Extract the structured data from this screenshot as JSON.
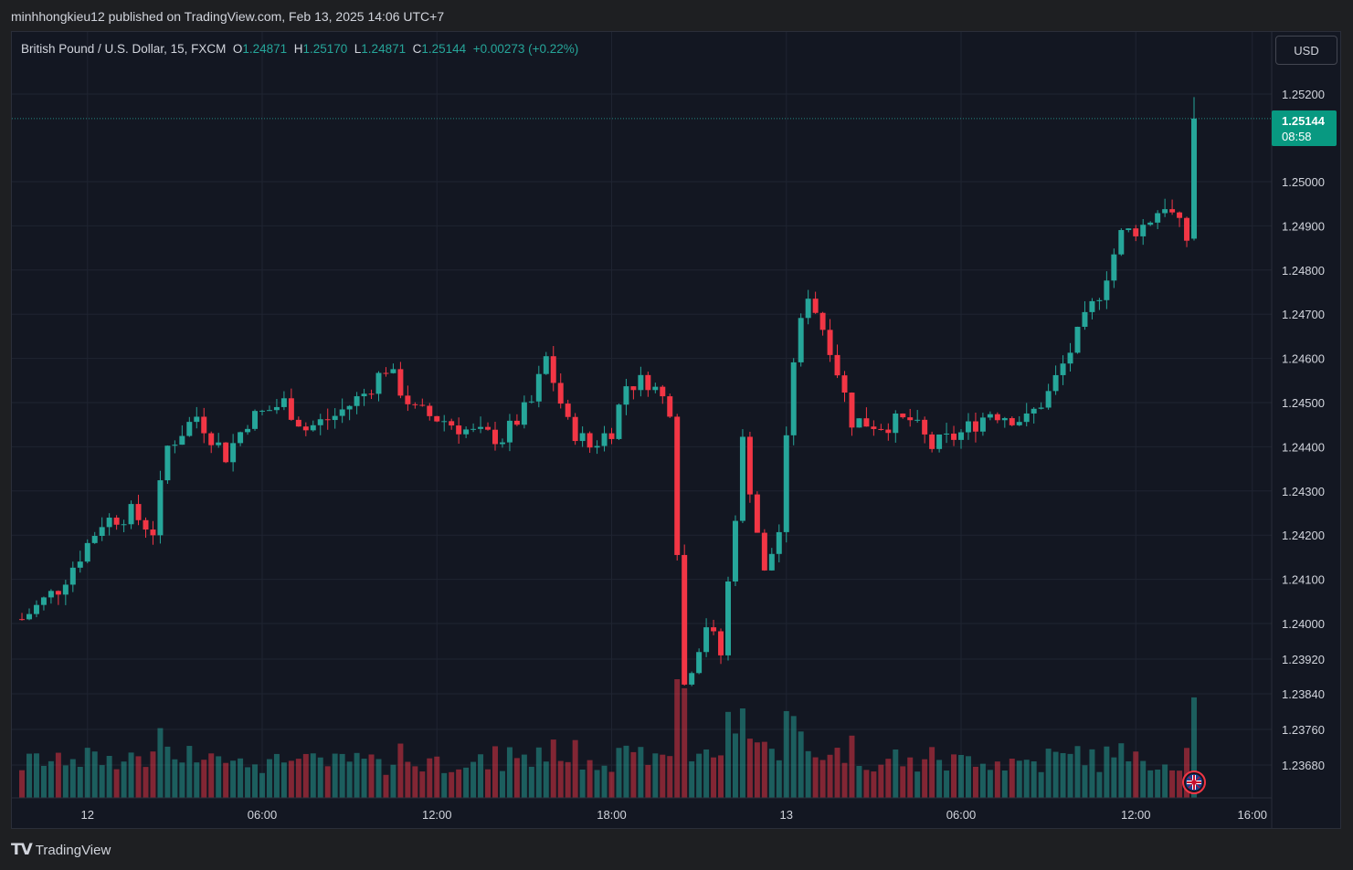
{
  "header": {
    "published": "minhhongkieu12 published on TradingView.com, Feb 13, 2025 14:06 UTC+7"
  },
  "legend": {
    "symbol": "British Pound / U.S. Dollar, 15, FXCM",
    "o_label": "O",
    "o_value": "1.24871",
    "h_label": "H",
    "h_value": "1.25170",
    "l_label": "L",
    "l_value": "1.24871",
    "c_label": "C",
    "c_value": "1.25144",
    "change": "+0.00273 (+0.22%)"
  },
  "currency_button": "USD",
  "last_price": {
    "price": "1.25144",
    "countdown": "08:58"
  },
  "footer": {
    "brand": "TradingView"
  },
  "colors": {
    "up": "#26a69a",
    "down": "#f23645",
    "background": "#131722",
    "grid": "#1f2431"
  },
  "icons": {
    "footer_logo": "tradingview-logo-icon",
    "event_flag": "uk-flag-icon"
  },
  "chart_data": {
    "type": "candlestick",
    "interval_minutes": 15,
    "y_ticks": [
      "1.25200",
      "1.25000",
      "1.24900",
      "1.24800",
      "1.24700",
      "1.24600",
      "1.24500",
      "1.24400",
      "1.24300",
      "1.24200",
      "1.24100",
      "1.24000",
      "1.23920",
      "1.23840",
      "1.23760",
      "1.23680"
    ],
    "x_ticks": [
      {
        "label": "12",
        "time": "2025-02-12 00:00"
      },
      {
        "label": "06:00",
        "time": "2025-02-12 06:00"
      },
      {
        "label": "12:00",
        "time": "2025-02-12 12:00"
      },
      {
        "label": "18:00",
        "time": "2025-02-12 18:00"
      },
      {
        "label": "13",
        "time": "2025-02-13 00:00"
      },
      {
        "label": "06:00",
        "time": "2025-02-13 06:00"
      },
      {
        "label": "12:00",
        "time": "2025-02-13 12:00"
      },
      {
        "label": "16:00",
        "time": "2025-02-13 16:00"
      }
    ],
    "x_range": [
      "2025-02-11 21:45",
      "2025-02-13 16:30"
    ],
    "last_price_value": 1.25144,
    "close_path": [
      [
        "2025-02-11 21:45",
        1.2401
      ],
      [
        "2025-02-11 23:00",
        1.2408
      ],
      [
        "2025-02-12 00:30",
        1.2423
      ],
      [
        "2025-02-12 01:30",
        1.2425
      ],
      [
        "2025-02-12 02:15",
        1.2421
      ],
      [
        "2025-02-12 02:45",
        1.244
      ],
      [
        "2025-02-12 03:45",
        1.2447
      ],
      [
        "2025-02-12 04:45",
        1.2438
      ],
      [
        "2025-02-12 05:30",
        1.2446
      ],
      [
        "2025-02-12 06:45",
        1.245
      ],
      [
        "2025-02-12 07:30",
        1.2444
      ],
      [
        "2025-02-12 08:30",
        1.2447
      ],
      [
        "2025-02-12 09:30",
        1.2452
      ],
      [
        "2025-02-12 10:15",
        1.2458
      ],
      [
        "2025-02-12 11:15",
        1.2448
      ],
      [
        "2025-02-12 12:15",
        1.2446
      ],
      [
        "2025-02-12 13:15",
        1.2443
      ],
      [
        "2025-02-12 14:15",
        1.2442
      ],
      [
        "2025-02-12 15:15",
        1.245
      ],
      [
        "2025-02-12 15:45",
        1.246
      ],
      [
        "2025-02-12 16:30",
        1.2445
      ],
      [
        "2025-02-12 17:15",
        1.244
      ],
      [
        "2025-02-12 18:00",
        1.2444
      ],
      [
        "2025-02-12 18:30",
        1.2454
      ],
      [
        "2025-02-12 19:15",
        1.2455
      ],
      [
        "2025-02-12 20:00",
        1.2449
      ],
      [
        "2025-02-12 20:30",
        1.2386
      ],
      [
        "2025-02-12 21:15",
        1.24
      ],
      [
        "2025-02-12 21:45",
        1.2393
      ],
      [
        "2025-02-12 22:30",
        1.2441
      ],
      [
        "2025-02-12 23:15",
        1.2411
      ],
      [
        "2025-02-12 23:45",
        1.2421
      ],
      [
        "2025-02-13 00:15",
        1.246
      ],
      [
        "2025-02-13 00:45",
        1.2475
      ],
      [
        "2025-02-13 01:30",
        1.2463
      ],
      [
        "2025-02-13 02:15",
        1.2446
      ],
      [
        "2025-02-13 03:15",
        1.2445
      ],
      [
        "2025-02-13 04:15",
        1.2446
      ],
      [
        "2025-02-13 05:00",
        1.244
      ],
      [
        "2025-02-13 06:00",
        1.2443
      ],
      [
        "2025-02-13 07:00",
        1.2448
      ],
      [
        "2025-02-13 08:15",
        1.2446
      ],
      [
        "2025-02-13 09:00",
        1.2452
      ],
      [
        "2025-02-13 10:00",
        1.2465
      ],
      [
        "2025-02-13 10:45",
        1.2475
      ],
      [
        "2025-02-13 11:30",
        1.2488
      ],
      [
        "2025-02-13 12:15",
        1.249
      ],
      [
        "2025-02-13 13:00",
        1.2495
      ],
      [
        "2025-02-13 13:45",
        1.2487
      ],
      [
        "2025-02-13 14:00",
        1.25144
      ]
    ]
  }
}
